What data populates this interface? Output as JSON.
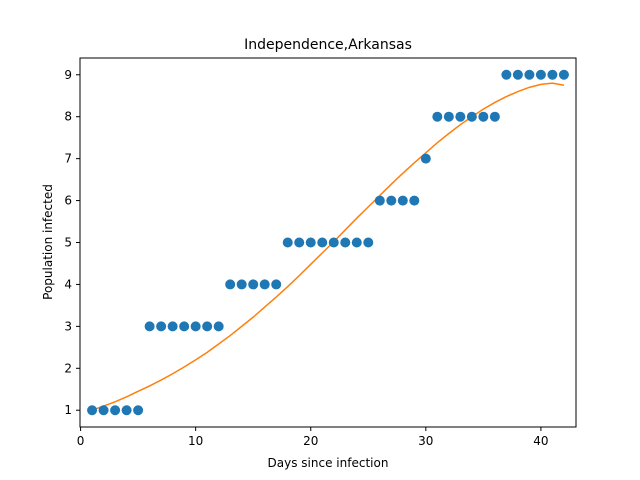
{
  "chart_data": {
    "type": "scatter",
    "title": "Independence,Arkansas",
    "xlabel": "Days since infection",
    "ylabel": "Population infected",
    "xlim": [
      -0.05,
      43.05
    ],
    "ylim": [
      0.6,
      9.4
    ],
    "xticks": [
      0,
      10,
      20,
      30,
      40
    ],
    "yticks": [
      1,
      2,
      3,
      4,
      5,
      6,
      7,
      8,
      9
    ],
    "grid": false,
    "series": [
      {
        "kind": "scatter",
        "color": "#1f77b4",
        "x": [
          1,
          2,
          3,
          4,
          5,
          6,
          7,
          8,
          9,
          10,
          11,
          12,
          13,
          14,
          15,
          16,
          17,
          18,
          19,
          20,
          21,
          22,
          23,
          24,
          25,
          26,
          27,
          28,
          29,
          30,
          31,
          32,
          33,
          34,
          35,
          36,
          37,
          38,
          39,
          40,
          41,
          42
        ],
        "y": [
          1,
          1,
          1,
          1,
          1,
          3,
          3,
          3,
          3,
          3,
          3,
          3,
          4,
          4,
          4,
          4,
          4,
          5,
          5,
          5,
          5,
          5,
          5,
          5,
          5,
          6,
          6,
          6,
          6,
          7,
          8,
          8,
          8,
          8,
          8,
          8,
          9,
          9,
          9,
          9,
          9,
          9
        ]
      },
      {
        "kind": "line",
        "color": "#ff7f0e",
        "x": [
          1,
          2,
          3,
          4,
          5,
          6,
          7,
          8,
          9,
          10,
          11,
          12,
          13,
          14,
          15,
          16,
          17,
          18,
          19,
          20,
          21,
          22,
          23,
          24,
          25,
          26,
          27,
          28,
          29,
          30,
          31,
          32,
          33,
          34,
          35,
          36,
          37,
          38,
          39,
          40,
          41,
          42
        ],
        "y": [
          1.0,
          1.1,
          1.2,
          1.32,
          1.45,
          1.58,
          1.72,
          1.87,
          2.03,
          2.2,
          2.38,
          2.58,
          2.78,
          3.0,
          3.22,
          3.46,
          3.7,
          3.95,
          4.21,
          4.48,
          4.75,
          5.02,
          5.3,
          5.58,
          5.85,
          6.12,
          6.39,
          6.65,
          6.9,
          7.14,
          7.38,
          7.6,
          7.81,
          8.0,
          8.18,
          8.34,
          8.48,
          8.6,
          8.7,
          8.77,
          8.8,
          8.75
        ]
      }
    ]
  }
}
